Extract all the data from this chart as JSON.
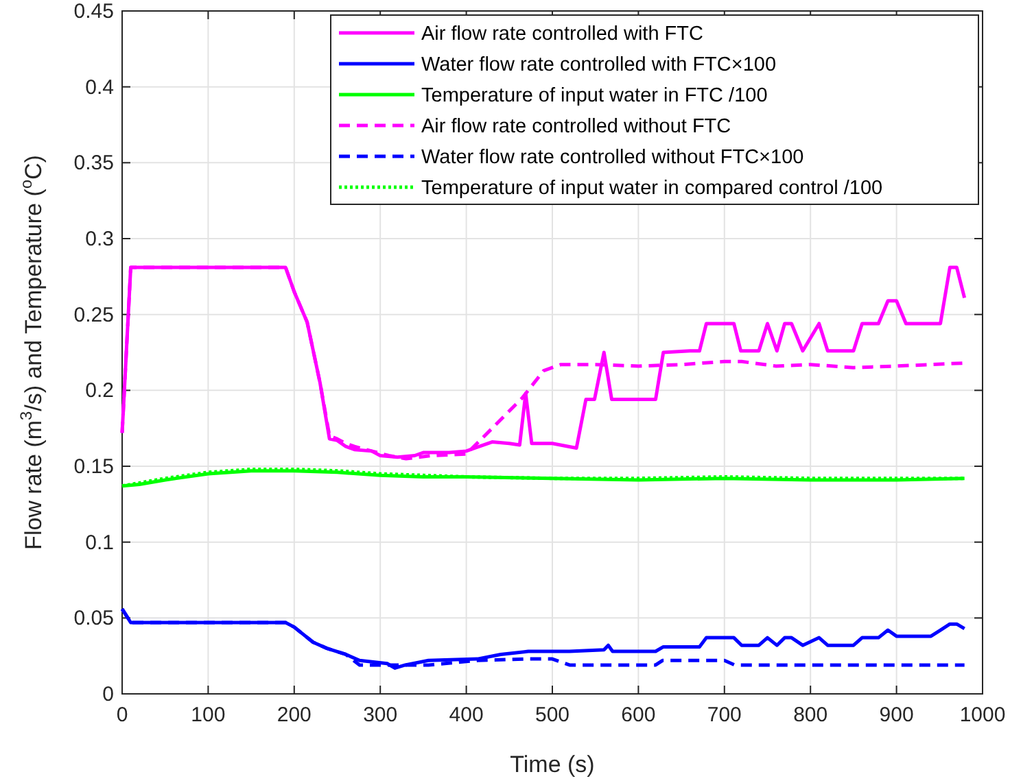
{
  "chart_data": {
    "type": "line",
    "xlabel": "Time (s)",
    "ylabel": "Flow rate (m$^{3}$/s) and Temperature ($^{o}$C)",
    "xlim": [
      0,
      1000
    ],
    "ylim": [
      0,
      0.45
    ],
    "xticks": [
      0,
      100,
      200,
      300,
      400,
      500,
      600,
      700,
      800,
      900,
      1000
    ],
    "yticks": [
      0,
      0.05,
      0.1,
      0.15,
      0.2,
      0.25,
      0.3,
      0.35,
      0.4,
      0.45
    ],
    "grid": true,
    "legend": "top right",
    "series": [
      {
        "name": "Air flow rate controlled with FTC",
        "color": "#ff00ff",
        "line_style": "solid",
        "x": [
          0,
          10,
          190,
          200,
          215,
          230,
          241,
          250,
          260,
          270,
          290,
          300,
          320,
          340,
          350,
          380,
          400,
          410,
          430,
          450,
          462,
          469,
          476,
          500,
          528,
          539,
          549,
          560,
          569,
          620,
          629,
          660,
          671,
          679,
          711,
          719,
          740,
          750,
          761,
          770,
          778,
          791,
          810,
          820,
          850,
          860,
          879,
          890,
          900,
          911,
          940,
          951,
          962,
          970,
          979
        ],
        "values": [
          0.172,
          0.281,
          0.281,
          0.265,
          0.245,
          0.205,
          0.168,
          0.167,
          0.163,
          0.161,
          0.16,
          0.157,
          0.156,
          0.157,
          0.159,
          0.159,
          0.16,
          0.162,
          0.166,
          0.165,
          0.164,
          0.198,
          0.165,
          0.165,
          0.162,
          0.194,
          0.194,
          0.225,
          0.194,
          0.194,
          0.225,
          0.226,
          0.226,
          0.244,
          0.244,
          0.226,
          0.226,
          0.244,
          0.226,
          0.244,
          0.244,
          0.226,
          0.244,
          0.226,
          0.226,
          0.244,
          0.244,
          0.259,
          0.259,
          0.244,
          0.244,
          0.244,
          0.281,
          0.281,
          0.261
        ]
      },
      {
        "name": "Water flow rate controlled with FTC×100",
        "color": "#0000ff",
        "line_style": "solid",
        "x": [
          0,
          10,
          190,
          200,
          222,
          238,
          260,
          276,
          308,
          317,
          329,
          356,
          413,
          440,
          472,
          520,
          560,
          565,
          570,
          620,
          629,
          671,
          679,
          711,
          720,
          740,
          750,
          761,
          770,
          778,
          791,
          810,
          820,
          850,
          860,
          879,
          890,
          900,
          940,
          951,
          962,
          970,
          979
        ],
        "values": [
          0.056,
          0.047,
          0.047,
          0.044,
          0.034,
          0.03,
          0.026,
          0.022,
          0.02,
          0.017,
          0.019,
          0.022,
          0.023,
          0.026,
          0.028,
          0.028,
          0.029,
          0.032,
          0.028,
          0.028,
          0.031,
          0.031,
          0.037,
          0.037,
          0.032,
          0.032,
          0.037,
          0.032,
          0.037,
          0.037,
          0.032,
          0.037,
          0.032,
          0.032,
          0.037,
          0.037,
          0.042,
          0.038,
          0.038,
          0.042,
          0.046,
          0.046,
          0.043
        ]
      },
      {
        "name": "Temperature of input water in FTC /100",
        "color": "#00ff00",
        "line_style": "solid",
        "x": [
          0,
          20,
          50,
          100,
          150,
          200,
          250,
          300,
          350,
          400,
          500,
          600,
          700,
          800,
          900,
          979
        ],
        "values": [
          0.137,
          0.138,
          0.141,
          0.145,
          0.147,
          0.147,
          0.146,
          0.144,
          0.143,
          0.143,
          0.142,
          0.141,
          0.142,
          0.141,
          0.141,
          0.142
        ]
      },
      {
        "name": "Air flow rate controlled without FTC",
        "color": "#ff00ff",
        "line_style": "dashed",
        "x": [
          0,
          10,
          190,
          200,
          215,
          230,
          241,
          250,
          260,
          270,
          290,
          310,
          330,
          360,
          400,
          430,
          465,
          490,
          510,
          550,
          600,
          650,
          700,
          720,
          760,
          800,
          850,
          900,
          979
        ],
        "values": [
          0.172,
          0.281,
          0.281,
          0.265,
          0.245,
          0.205,
          0.17,
          0.168,
          0.165,
          0.163,
          0.16,
          0.157,
          0.155,
          0.157,
          0.158,
          0.175,
          0.195,
          0.213,
          0.217,
          0.217,
          0.216,
          0.217,
          0.219,
          0.219,
          0.216,
          0.217,
          0.215,
          0.216,
          0.218
        ]
      },
      {
        "name": "Water flow rate controlled without FTC×100",
        "color": "#0000ff",
        "line_style": "dashed",
        "x": [
          0,
          10,
          190,
          200,
          222,
          238,
          260,
          276,
          356,
          413,
          470,
          500,
          520,
          620,
          628,
          700,
          712,
          979
        ],
        "values": [
          0.056,
          0.047,
          0.047,
          0.044,
          0.034,
          0.03,
          0.026,
          0.019,
          0.019,
          0.022,
          0.023,
          0.023,
          0.019,
          0.019,
          0.022,
          0.022,
          0.019,
          0.019
        ]
      },
      {
        "name": "Temperature of input water in compared control /100",
        "color": "#00ff00",
        "line_style": "dotted",
        "x": [
          0,
          20,
          50,
          100,
          150,
          200,
          250,
          300,
          350,
          400,
          500,
          600,
          700,
          800,
          900,
          979
        ],
        "values": [
          0.137,
          0.139,
          0.142,
          0.146,
          0.148,
          0.148,
          0.147,
          0.145,
          0.144,
          0.143,
          0.142,
          0.142,
          0.143,
          0.142,
          0.142,
          0.142
        ]
      }
    ]
  }
}
